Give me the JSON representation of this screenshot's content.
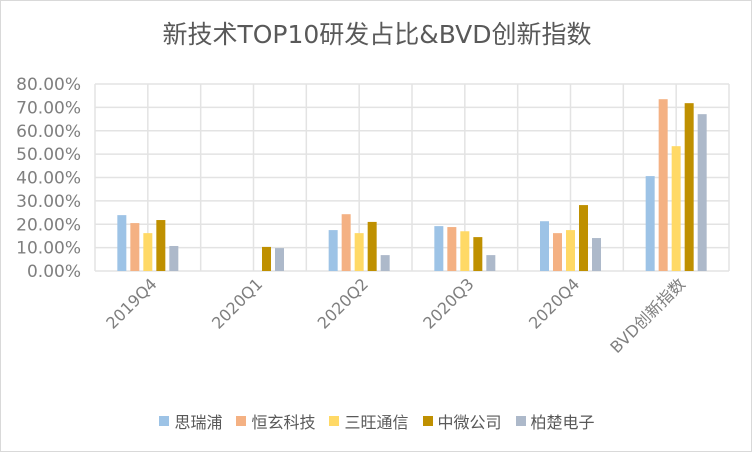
{
  "chart_data": {
    "type": "bar",
    "title": "新技术TOP10研发占比&BVD创新指数",
    "categories": [
      "2019Q4",
      "2020Q1",
      "2020Q2",
      "2020Q3",
      "2020Q4",
      "BVD创新指数"
    ],
    "yticks": [
      "0.00%",
      "10.00%",
      "20.00%",
      "30.00%",
      "40.00%",
      "50.00%",
      "60.00%",
      "70.00%",
      "80.00%"
    ],
    "ylim": [
      0,
      80
    ],
    "grid": true,
    "legend_position": "bottom",
    "series": [
      {
        "name": "思瑞浦",
        "color": "#9DC3E6",
        "values": [
          23.9,
          null,
          17.5,
          19.2,
          21.3,
          40.6
        ]
      },
      {
        "name": "恒玄科技",
        "color": "#F4B183",
        "values": [
          20.5,
          null,
          24.3,
          18.8,
          16.2,
          73.5
        ]
      },
      {
        "name": "三旺通信",
        "color": "#FFD966",
        "values": [
          16.2,
          null,
          16.2,
          17.0,
          17.5,
          53.4
        ]
      },
      {
        "name": "中微公司",
        "color": "#BF9000",
        "values": [
          21.8,
          10.3,
          21.0,
          14.5,
          28.2,
          71.8
        ]
      },
      {
        "name": "柏楚电子",
        "color": "#ADB9CA",
        "values": [
          10.7,
          9.8,
          6.8,
          6.8,
          14.1,
          67.1
        ]
      }
    ]
  }
}
